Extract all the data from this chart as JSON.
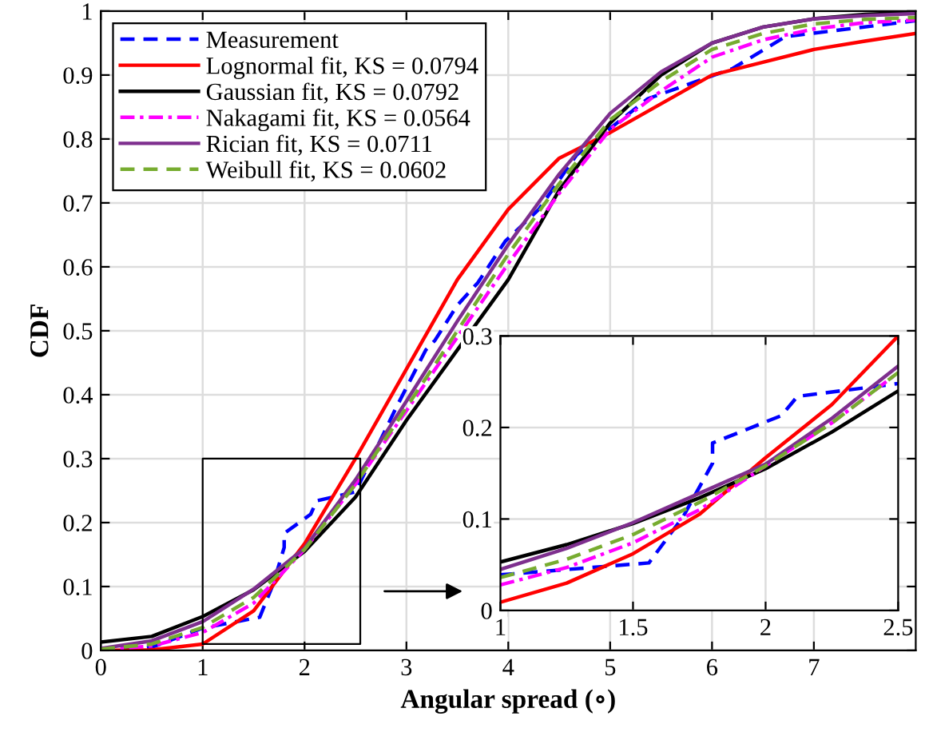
{
  "chart_data": [
    {
      "type": "line",
      "xlabel": "Angular spread (∘)",
      "ylabel": "CDF",
      "xlim": [
        0,
        8
      ],
      "ylim": [
        0,
        1
      ],
      "xticks": [
        0,
        1,
        2,
        3,
        4,
        5,
        6,
        7
      ],
      "yticks": [
        0,
        0.1,
        0.2,
        0.3,
        0.4,
        0.5,
        0.6,
        0.7,
        0.8,
        0.9,
        1
      ],
      "grid": true,
      "legend": "top left",
      "x": [
        0,
        0.5,
        1,
        1.5,
        2,
        2.5,
        3,
        3.5,
        4,
        4.5,
        5,
        5.5,
        6,
        6.5,
        7,
        7.5,
        8
      ],
      "series": [
        {
          "name": "Measurement",
          "color": "#0000ff",
          "line_style": "dashed",
          "x": [
            0,
            0.5,
            1,
            1.56,
            1.69,
            1.8,
            1.8,
            2.06,
            2.12,
            2.5,
            2.9,
            3.19,
            3.28,
            3.5,
            3.7,
            3.97,
            4.3,
            4.67,
            5.37,
            6.2,
            6.72,
            8
          ],
          "values": [
            0,
            0.005,
            0.035,
            0.052,
            0.103,
            0.161,
            0.183,
            0.213,
            0.234,
            0.248,
            0.38,
            0.47,
            0.485,
            0.54,
            0.575,
            0.64,
            0.69,
            0.775,
            0.863,
            0.91,
            0.96,
            0.985
          ]
        },
        {
          "name": "Lognormal fit, KS = 0.0794",
          "color": "#ff0000",
          "line_style": "solid",
          "values": [
            0,
            0.001,
            0.01,
            0.062,
            0.167,
            0.3,
            0.44,
            0.58,
            0.69,
            0.77,
            0.81,
            0.855,
            0.9,
            0.92,
            0.94,
            0.953,
            0.965
          ]
        },
        {
          "name": "Gaussian fit, KS = 0.0792",
          "color": "#000000",
          "line_style": "solid",
          "values": [
            0.013,
            0.022,
            0.053,
            0.095,
            0.155,
            0.24,
            0.36,
            0.47,
            0.58,
            0.72,
            0.825,
            0.9,
            0.95,
            0.975,
            0.988,
            0.995,
            0.998
          ]
        },
        {
          "name": "Nakagami fit, KS = 0.0564",
          "color": "#ff00ff",
          "line_style": "dashdot",
          "values": [
            0.001,
            0.007,
            0.028,
            0.074,
            0.158,
            0.26,
            0.375,
            0.49,
            0.605,
            0.715,
            0.815,
            0.875,
            0.928,
            0.955,
            0.972,
            0.982,
            0.986
          ]
        },
        {
          "name": "Rician fit, KS = 0.0711",
          "color": "#7e2f8e",
          "line_style": "solid",
          "values": [
            0.003,
            0.015,
            0.045,
            0.096,
            0.16,
            0.267,
            0.39,
            0.515,
            0.635,
            0.745,
            0.84,
            0.905,
            0.95,
            0.975,
            0.988,
            0.993,
            0.996
          ]
        },
        {
          "name": "Weibull fit, KS = 0.0602",
          "color": "#77ac30",
          "line_style": "dashed",
          "values": [
            0.002,
            0.01,
            0.036,
            0.083,
            0.158,
            0.26,
            0.38,
            0.5,
            0.62,
            0.73,
            0.83,
            0.89,
            0.94,
            0.965,
            0.98,
            0.987,
            0.99
          ]
        }
      ]
    },
    {
      "type": "line",
      "xlim": [
        1,
        2.5
      ],
      "ylim": [
        0,
        0.3
      ],
      "xticks": [
        1,
        1.5,
        2,
        2.5
      ],
      "yticks": [
        0,
        0.1,
        0.2,
        0.3
      ],
      "grid": true,
      "x": [
        1,
        1.25,
        1.5,
        1.75,
        2,
        2.25,
        2.5
      ],
      "series": [
        {
          "color": "#0000ff",
          "line_style": "dashed",
          "x": [
            1,
            1.56,
            1.69,
            1.8,
            1.8,
            2.06,
            2.12,
            2.5
          ],
          "values": [
            0.039,
            0.052,
            0.103,
            0.161,
            0.183,
            0.213,
            0.234,
            0.248
          ]
        },
        {
          "color": "#ff0000",
          "line_style": "solid",
          "values": [
            0.009,
            0.03,
            0.062,
            0.105,
            0.167,
            0.225,
            0.3
          ]
        },
        {
          "color": "#000000",
          "line_style": "solid",
          "values": [
            0.053,
            0.072,
            0.095,
            0.123,
            0.155,
            0.195,
            0.24
          ]
        },
        {
          "color": "#ff00ff",
          "line_style": "dashdot",
          "values": [
            0.028,
            0.047,
            0.074,
            0.11,
            0.158,
            0.205,
            0.26
          ]
        },
        {
          "color": "#7e2f8e",
          "line_style": "solid",
          "values": [
            0.045,
            0.068,
            0.096,
            0.128,
            0.16,
            0.21,
            0.267
          ]
        },
        {
          "color": "#77ac30",
          "line_style": "dashed",
          "values": [
            0.036,
            0.056,
            0.083,
            0.118,
            0.158,
            0.205,
            0.26
          ]
        }
      ]
    }
  ]
}
